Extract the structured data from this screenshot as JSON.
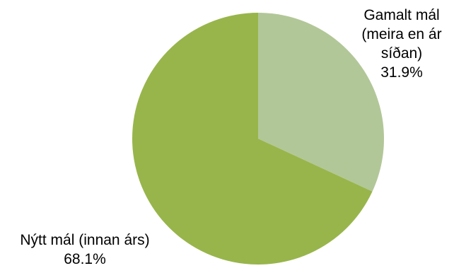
{
  "chart_data": {
    "type": "pie",
    "start_angle_deg": 0,
    "direction": "clockwise",
    "slices": [
      {
        "label_lines": [
          "Gamalt mál",
          "(meira en ár",
          "síðan)"
        ],
        "percent_text": "31.9%",
        "value": 31.9,
        "color": "#b2c798"
      },
      {
        "label_lines": [
          "Nýtt mál (innan árs)"
        ],
        "percent_text": "68.1%",
        "value": 68.1,
        "color": "#98b54b"
      }
    ]
  }
}
